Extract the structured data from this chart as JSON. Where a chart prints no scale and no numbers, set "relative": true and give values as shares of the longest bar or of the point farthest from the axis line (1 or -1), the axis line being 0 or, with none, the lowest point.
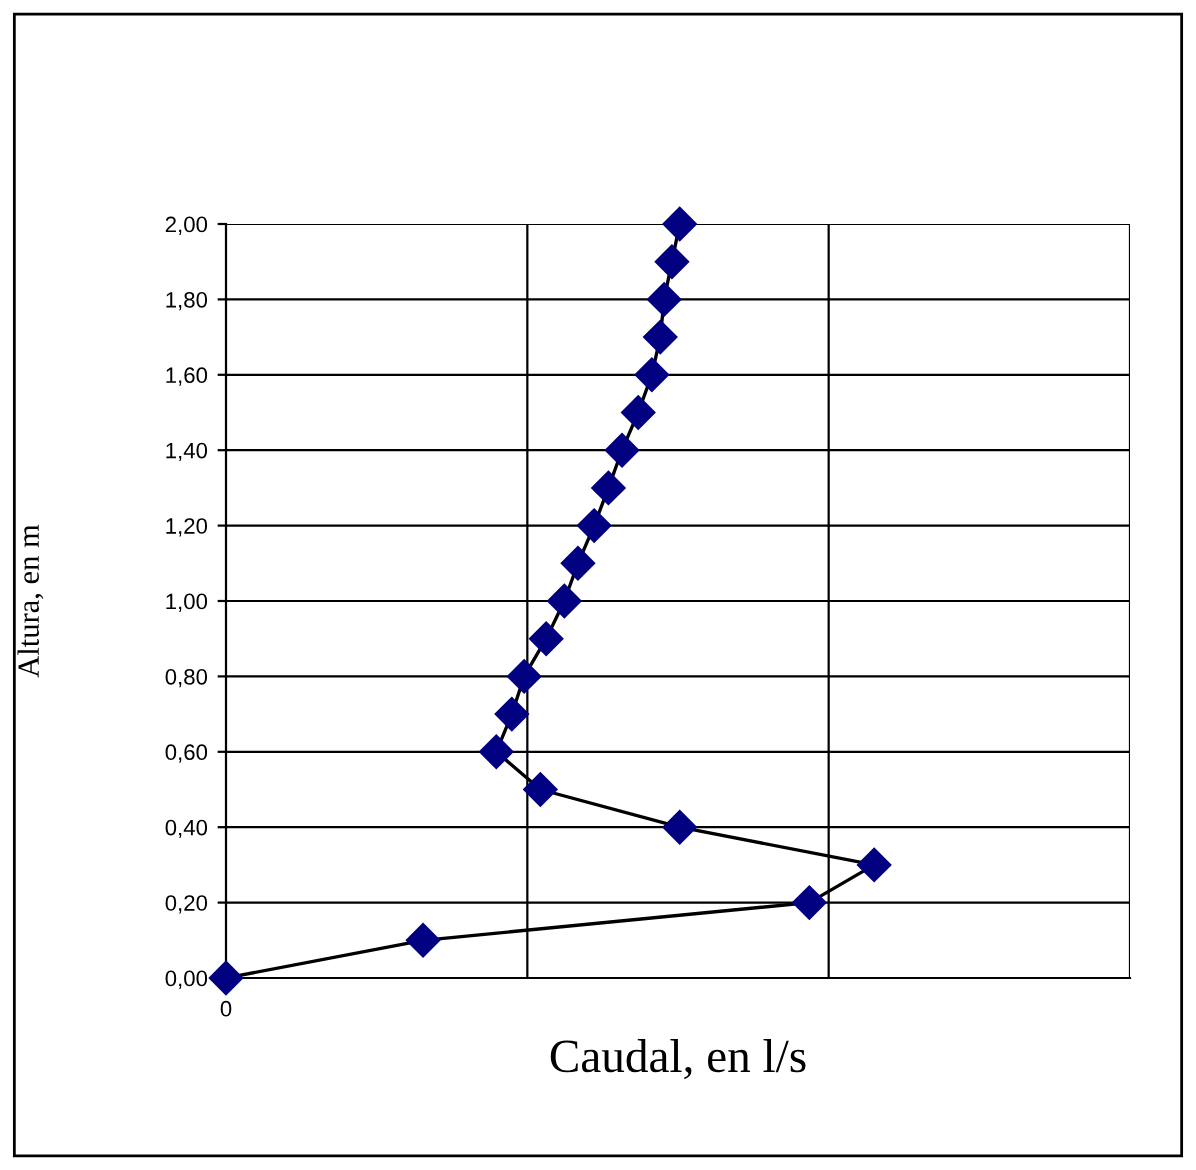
{
  "chart_data": {
    "type": "line",
    "orientation": "horizontal",
    "relative": true,
    "xlabel": "Caudal, en l/s",
    "ylabel": "Altura, en m",
    "marker": "diamond",
    "grid": true,
    "annotations": [
      "0"
    ],
    "categories": [
      "2,00",
      null,
      "1,80",
      null,
      "1,60",
      null,
      "1,40",
      null,
      "1,20",
      null,
      "1,00",
      null,
      "0,80",
      null,
      "0,60",
      null,
      "0,40",
      null,
      "0,20",
      null,
      "0,00"
    ],
    "series": [
      {
        "color": "#000080",
        "values": [
          0.7,
          0.688,
          0.676,
          0.67,
          0.657,
          0.636,
          0.611,
          0.59,
          0.568,
          0.543,
          0.522,
          0.494,
          0.46,
          0.441,
          0.417,
          0.485,
          0.7,
          1.0,
          0.9,
          0.304,
          0
        ]
      }
    ]
  }
}
